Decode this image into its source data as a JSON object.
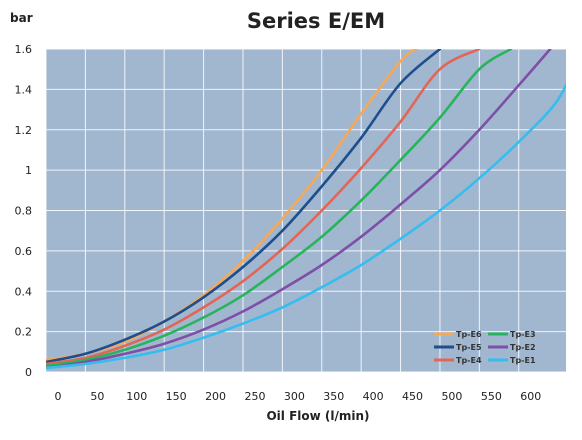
{
  "chart_data": {
    "type": "line",
    "title": "Series E/EM",
    "ylabel": "bar",
    "xlabel": "Oil Flow (l/min)",
    "xlim": [
      0,
      660
    ],
    "ylim": [
      0,
      1.6
    ],
    "x_ticks": [
      "0",
      "50",
      "100",
      "150",
      "200",
      "250",
      "300",
      "350",
      "400",
      "450",
      "500",
      "550",
      "600"
    ],
    "y_ticks": [
      "0",
      "0.2",
      "0.4",
      "0.6",
      "0.8",
      "1",
      "1.2",
      "1.4",
      "1.6"
    ],
    "grid": true,
    "legend_position": "bottom-right",
    "plot_background": "#a1b7d0",
    "series": [
      {
        "name": "Tp-E6",
        "color": "#f5a858",
        "x": [
          0,
          50,
          100,
          150,
          200,
          250,
          300,
          350,
          400,
          450,
          470
        ],
        "y": [
          0.06,
          0.09,
          0.15,
          0.25,
          0.38,
          0.55,
          0.76,
          1.0,
          1.28,
          1.54,
          1.6
        ]
      },
      {
        "name": "Tp-E5",
        "color": "#1f4e8c",
        "x": [
          0,
          50,
          100,
          150,
          200,
          250,
          300,
          350,
          400,
          450,
          500
        ],
        "y": [
          0.05,
          0.09,
          0.16,
          0.25,
          0.37,
          0.52,
          0.7,
          0.92,
          1.16,
          1.43,
          1.6
        ]
      },
      {
        "name": "Tp-E4",
        "color": "#e26655",
        "x": [
          0,
          50,
          100,
          150,
          200,
          250,
          300,
          350,
          400,
          450,
          500,
          550
        ],
        "y": [
          0.04,
          0.07,
          0.13,
          0.21,
          0.32,
          0.45,
          0.61,
          0.8,
          1.01,
          1.24,
          1.5,
          1.6
        ]
      },
      {
        "name": "Tp-E3",
        "color": "#27b45a",
        "x": [
          0,
          50,
          100,
          150,
          200,
          250,
          300,
          350,
          400,
          450,
          500,
          550,
          590
        ],
        "y": [
          0.03,
          0.06,
          0.11,
          0.18,
          0.27,
          0.38,
          0.52,
          0.67,
          0.85,
          1.05,
          1.26,
          1.5,
          1.6
        ]
      },
      {
        "name": "Tp-E2",
        "color": "#7e4fa6",
        "x": [
          0,
          50,
          100,
          150,
          200,
          250,
          300,
          350,
          400,
          450,
          500,
          550,
          600,
          640
        ],
        "y": [
          0.02,
          0.05,
          0.09,
          0.14,
          0.21,
          0.3,
          0.41,
          0.53,
          0.67,
          0.83,
          1.0,
          1.2,
          1.42,
          1.6
        ]
      },
      {
        "name": "Tp-E1",
        "color": "#36bdf0",
        "x": [
          0,
          50,
          100,
          150,
          200,
          250,
          300,
          350,
          400,
          450,
          500,
          550,
          600,
          650,
          680
        ],
        "y": [
          0.02,
          0.04,
          0.07,
          0.11,
          0.17,
          0.24,
          0.32,
          0.42,
          0.53,
          0.66,
          0.8,
          0.96,
          1.14,
          1.35,
          1.6
        ]
      }
    ]
  }
}
